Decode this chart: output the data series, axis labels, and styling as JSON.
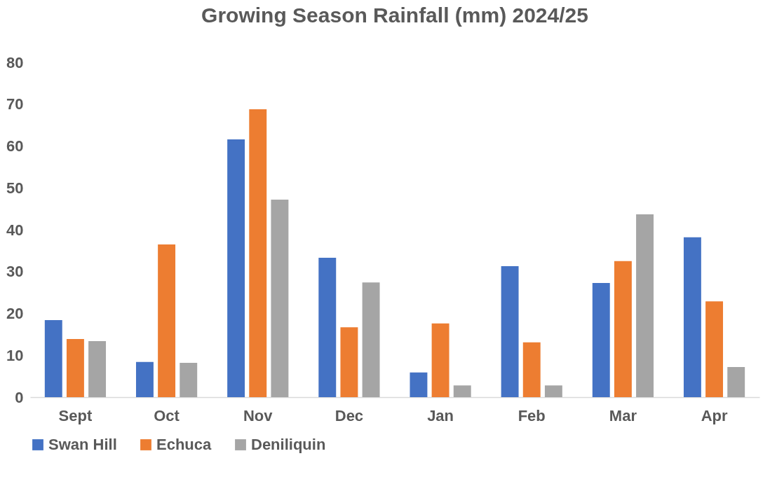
{
  "chart_data": {
    "type": "bar",
    "title": "Growing Season Rainfall (mm) 2024/25",
    "categories": [
      "Sept",
      "Oct",
      "Nov",
      "Dec",
      "Jan",
      "Feb",
      "Mar",
      "Apr"
    ],
    "series": [
      {
        "name": "Swan Hill",
        "color": "#4472c4",
        "values": [
          18.4,
          8.4,
          61.6,
          33.3,
          5.9,
          31.3,
          27.3,
          38.2
        ]
      },
      {
        "name": "Echuca",
        "color": "#ed7d31",
        "values": [
          13.9,
          36.5,
          68.8,
          16.7,
          17.6,
          13.1,
          32.5,
          22.9
        ]
      },
      {
        "name": "Deniliquin",
        "color": "#a5a5a5",
        "values": [
          13.4,
          8.2,
          47.2,
          27.4,
          2.8,
          2.8,
          43.7,
          7.2
        ]
      }
    ],
    "ylim": [
      0,
      80
    ],
    "yticks": [
      0,
      10,
      20,
      30,
      40,
      50,
      60,
      70,
      80
    ],
    "grid": false,
    "legend": "bottom"
  }
}
